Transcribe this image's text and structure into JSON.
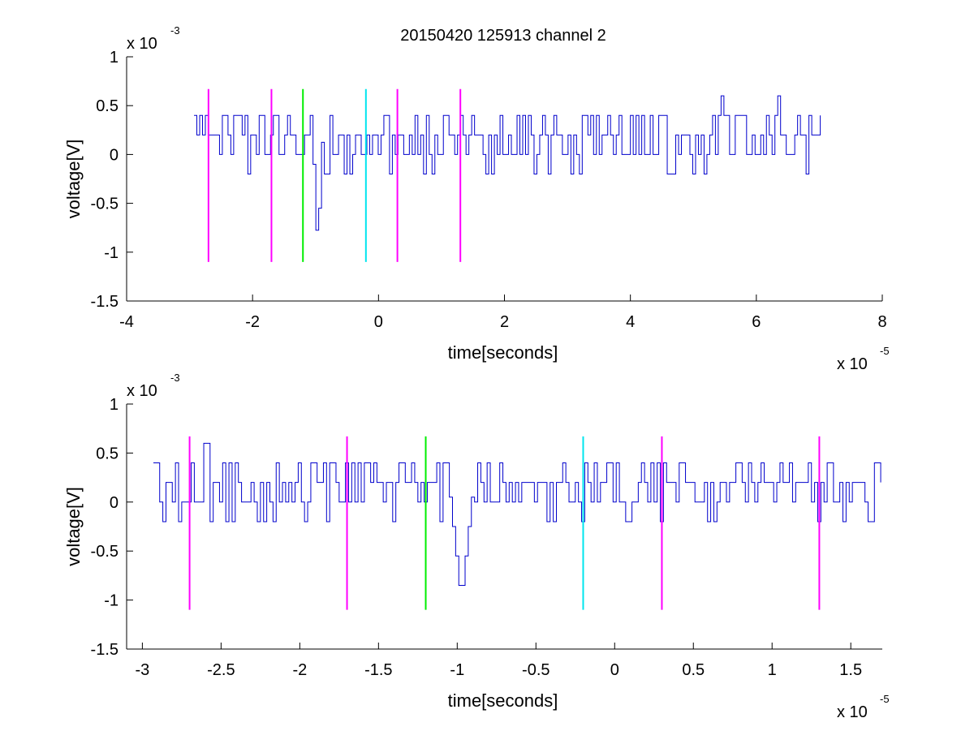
{
  "figure_title": "20150420 125913 channel 2",
  "chart_data": [
    {
      "type": "line",
      "title": "20150420 125913 channel 2",
      "xlabel": "time[seconds]",
      "ylabel": "voltage[V]",
      "x_exponent_label": "x 10",
      "x_exponent_sup": "-5",
      "y_exponent_label": "x 10",
      "y_exponent_sup": "-3",
      "xlim": [
        -4,
        8
      ],
      "ylim": [
        -1.5,
        1
      ],
      "xticks": [
        -4,
        -2,
        0,
        2,
        4,
        6,
        8
      ],
      "xtick_labels": [
        "-4",
        "-2",
        "0",
        "2",
        "4",
        "6",
        "8"
      ],
      "yticks": [
        1,
        0.5,
        0,
        -0.5,
        -1,
        -1.5
      ],
      "ytick_labels": [
        "1",
        "0.5",
        "0",
        "-0.5",
        "-1",
        "-1.5"
      ],
      "grid": false,
      "series": [
        {
          "color": "#0000cc",
          "x_range": [
            -2.93,
            7.03
          ],
          "baseline": 0.2,
          "levels": [
            -0.2,
            0,
            0.2,
            0.4
          ],
          "dip": {
            "x": -0.98,
            "y": -1.0
          },
          "peaks": [
            {
              "x": 5.45,
              "y": 0.6
            },
            {
              "x": 6.35,
              "y": 0.6
            }
          ]
        }
      ],
      "markers": [
        {
          "x": -2.7,
          "color": "#ff00ff",
          "y_range": [
            -1.1,
            0.67
          ]
        },
        {
          "x": -1.7,
          "color": "#ff00ff",
          "y_range": [
            -1.1,
            0.67
          ]
        },
        {
          "x": -1.2,
          "color": "#00ee00",
          "y_range": [
            -1.1,
            0.67
          ]
        },
        {
          "x": -0.2,
          "color": "#00e5ee",
          "y_range": [
            -1.1,
            0.67
          ]
        },
        {
          "x": 0.3,
          "color": "#ff00ff",
          "y_range": [
            -1.1,
            0.67
          ]
        },
        {
          "x": 1.3,
          "color": "#ff00ff",
          "y_range": [
            -1.1,
            0.67
          ]
        }
      ]
    },
    {
      "type": "line",
      "title": "",
      "xlabel": "time[seconds]",
      "ylabel": "voltage[V]",
      "x_exponent_label": "x 10",
      "x_exponent_sup": "-5",
      "y_exponent_label": "x 10",
      "y_exponent_sup": "-3",
      "xlim": [
        -3.1,
        1.7
      ],
      "ylim": [
        -1.5,
        1
      ],
      "xticks": [
        -3,
        -2.5,
        -2,
        -1.5,
        -1,
        -0.5,
        0,
        0.5,
        1,
        1.5
      ],
      "xtick_labels": [
        "-3",
        "-2.5",
        "-2",
        "-1.5",
        "-1",
        "-0.5",
        "0",
        "0.5",
        "1",
        "1.5"
      ],
      "yticks": [
        1,
        0.5,
        0,
        -0.5,
        -1,
        -1.5
      ],
      "ytick_labels": [
        "1",
        "0.5",
        "0",
        "-0.5",
        "-1",
        "-1.5"
      ],
      "grid": false,
      "series": [
        {
          "color": "#0000cc",
          "x_range": [
            -2.93,
            1.7
          ],
          "baseline": 0.2,
          "levels": [
            -0.2,
            0,
            0.2,
            0.4
          ],
          "dip": {
            "x": -0.98,
            "y": -1.0
          },
          "peaks": [
            {
              "x": -2.6,
              "y": 0.6
            }
          ]
        }
      ],
      "markers": [
        {
          "x": -2.7,
          "color": "#ff00ff",
          "y_range": [
            -1.1,
            0.67
          ]
        },
        {
          "x": -1.7,
          "color": "#ff00ff",
          "y_range": [
            -1.1,
            0.67
          ]
        },
        {
          "x": -1.2,
          "color": "#00ee00",
          "y_range": [
            -1.1,
            0.67
          ]
        },
        {
          "x": -0.2,
          "color": "#00e5ee",
          "y_range": [
            -1.1,
            0.67
          ]
        },
        {
          "x": 0.3,
          "color": "#ff00ff",
          "y_range": [
            -1.1,
            0.67
          ]
        },
        {
          "x": 1.3,
          "color": "#ff00ff",
          "y_range": [
            -1.1,
            0.67
          ]
        }
      ]
    }
  ]
}
